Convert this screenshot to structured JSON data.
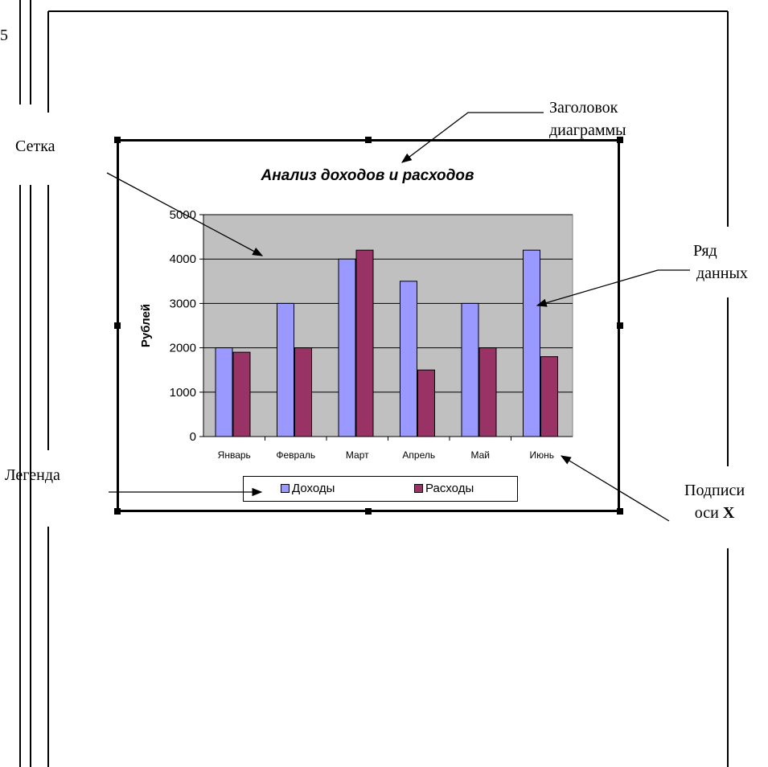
{
  "corner_mark": "5",
  "callouts": {
    "grid": "Сетка",
    "title_line1": "Заголовок",
    "title_line2": "диаграммы",
    "series_line1": "Ряд",
    "series_line2": "данных",
    "legend": "Легенда",
    "xlabels_line1": "Подписи",
    "xlabels_line2_prefix": "оси ",
    "xlabels_line2_bold": "X"
  },
  "colors": {
    "plot_background": "#c0c0c0",
    "income": "#9999ff",
    "expense": "#993366",
    "gridline": "#000000"
  },
  "chart_data": {
    "type": "bar",
    "title": "Анализ доходов и расходов",
    "ylabel": "Рублей",
    "xlabel": "",
    "categories": [
      "Январь",
      "Февраль",
      "Март",
      "Апрель",
      "Май",
      "Июнь"
    ],
    "series": [
      {
        "name": "Доходы",
        "values": [
          2000,
          3000,
          4000,
          3500,
          3000,
          4200
        ]
      },
      {
        "name": "Расходы",
        "values": [
          1900,
          2000,
          4200,
          1500,
          2000,
          1800
        ]
      }
    ],
    "ylim": [
      0,
      5000
    ],
    "yticks": [
      "0",
      "1000",
      "2000",
      "3000",
      "4000",
      "5000"
    ],
    "grid": true,
    "legend_position": "bottom"
  }
}
